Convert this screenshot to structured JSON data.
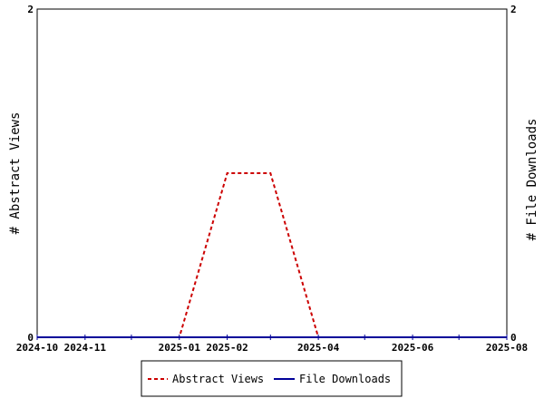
{
  "chart_data": {
    "type": "line",
    "x_ticks": [
      "2024-10",
      "2024-11",
      "2025-01",
      "2025-02",
      "2025-04",
      "2025-06",
      "2025-08"
    ],
    "x_domain": [
      "2024-10-01",
      "2025-08-01"
    ],
    "y_left": {
      "label": "# Abstract Views",
      "range": [
        0,
        2
      ],
      "ticks": [
        "0",
        "2"
      ]
    },
    "y_right": {
      "label": "# File Downloads",
      "range": [
        0,
        2
      ],
      "ticks": [
        "0",
        "2"
      ]
    },
    "series": [
      {
        "name": "Abstract Views",
        "axis": "left",
        "color": "#cc0000",
        "dash": "dashed",
        "points": [
          {
            "x": "2024-10-01",
            "y": 0
          },
          {
            "x": "2024-11-01",
            "y": 0
          },
          {
            "x": "2024-12-01",
            "y": 0
          },
          {
            "x": "2025-01-01",
            "y": 0
          },
          {
            "x": "2025-02-01",
            "y": 1
          },
          {
            "x": "2025-03-01",
            "y": 1
          },
          {
            "x": "2025-04-01",
            "y": 0
          },
          {
            "x": "2025-05-01",
            "y": 0
          },
          {
            "x": "2025-06-01",
            "y": 0
          },
          {
            "x": "2025-07-01",
            "y": 0
          },
          {
            "x": "2025-08-01",
            "y": 0
          }
        ]
      },
      {
        "name": "File Downloads",
        "axis": "right",
        "color": "#000099",
        "dash": "solid",
        "points": [
          {
            "x": "2024-10-01",
            "y": 0
          },
          {
            "x": "2025-08-01",
            "y": 0
          }
        ]
      }
    ],
    "legend": {
      "placement": "bottom-center"
    }
  }
}
